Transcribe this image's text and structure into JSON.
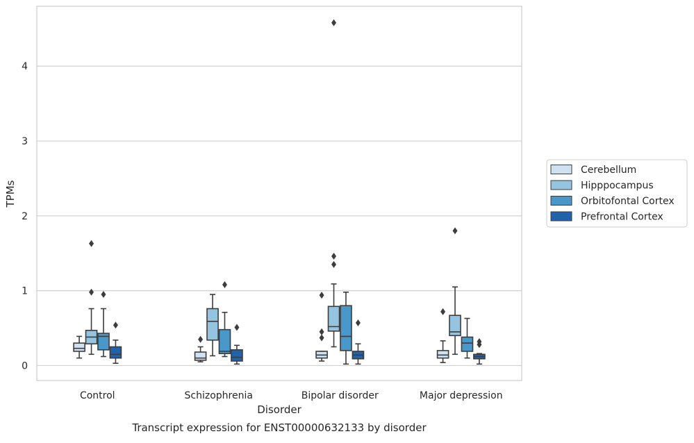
{
  "chart_data": {
    "type": "box",
    "title": "Transcript expression for ENST00000632133 by disorder",
    "xlabel": "Disorder",
    "ylabel": "TPMs",
    "ylim": [
      -0.2,
      4.8
    ],
    "yticks": [
      "0",
      "1",
      "2",
      "3",
      "4"
    ],
    "grid": true,
    "legend_placement": "right",
    "categories": [
      "Control",
      "Schizophrenia",
      "Bipolar disorder",
      "Major depression"
    ],
    "series": [
      {
        "name": "Cerebellum",
        "color": "#d0e1f2",
        "boxes": [
          {
            "whislo": 0.1,
            "q1": 0.19,
            "med": 0.23,
            "q3": 0.3,
            "whishi": 0.39,
            "fliers": []
          },
          {
            "whislo": 0.05,
            "q1": 0.07,
            "med": 0.1,
            "q3": 0.18,
            "whishi": 0.25,
            "fliers": [
              0.35
            ]
          },
          {
            "whislo": 0.06,
            "q1": 0.1,
            "med": 0.14,
            "q3": 0.19,
            "whishi": 0.19,
            "fliers": [
              0.37,
              0.45,
              0.94
            ]
          },
          {
            "whislo": 0.04,
            "q1": 0.1,
            "med": 0.14,
            "q3": 0.2,
            "whishi": 0.33,
            "fliers": [
              0.72
            ]
          }
        ]
      },
      {
        "name": "Hipppocampus",
        "color": "#94c4df",
        "boxes": [
          {
            "whislo": 0.15,
            "q1": 0.29,
            "med": 0.38,
            "q3": 0.47,
            "whishi": 0.76,
            "fliers": [
              0.98,
              1.63
            ]
          },
          {
            "whislo": 0.13,
            "q1": 0.34,
            "med": 0.59,
            "q3": 0.76,
            "whishi": 0.95,
            "fliers": []
          },
          {
            "whislo": 0.25,
            "q1": 0.46,
            "med": 0.52,
            "q3": 0.79,
            "whishi": 1.09,
            "fliers": [
              1.35,
              1.46,
              4.58
            ]
          },
          {
            "whislo": 0.15,
            "q1": 0.4,
            "med": 0.45,
            "q3": 0.67,
            "whishi": 1.05,
            "fliers": [
              1.8
            ]
          }
        ]
      },
      {
        "name": "Orbitofontal Cortex",
        "color": "#4a98c9",
        "boxes": [
          {
            "whislo": 0.12,
            "q1": 0.21,
            "med": 0.39,
            "q3": 0.43,
            "whishi": 0.76,
            "fliers": [
              0.95
            ]
          },
          {
            "whislo": 0.12,
            "q1": 0.16,
            "med": 0.19,
            "q3": 0.48,
            "whishi": 0.71,
            "fliers": [
              1.08
            ]
          },
          {
            "whislo": 0.02,
            "q1": 0.2,
            "med": 0.39,
            "q3": 0.8,
            "whishi": 0.98,
            "fliers": []
          },
          {
            "whislo": 0.1,
            "q1": 0.19,
            "med": 0.3,
            "q3": 0.38,
            "whishi": 0.63,
            "fliers": []
          }
        ]
      },
      {
        "name": "Prefrontal Cortex",
        "color": "#2163aa",
        "boxes": [
          {
            "whislo": 0.03,
            "q1": 0.1,
            "med": 0.15,
            "q3": 0.25,
            "whishi": 0.34,
            "fliers": [
              0.54
            ]
          },
          {
            "whislo": 0.02,
            "q1": 0.06,
            "med": 0.11,
            "q3": 0.21,
            "whishi": 0.27,
            "fliers": [
              0.51
            ]
          },
          {
            "whislo": 0.02,
            "q1": 0.09,
            "med": 0.14,
            "q3": 0.19,
            "whishi": 0.29,
            "fliers": [
              0.57
            ]
          },
          {
            "whislo": 0.02,
            "q1": 0.09,
            "med": 0.12,
            "q3": 0.15,
            "whishi": 0.16,
            "fliers": [
              0.28,
              0.32
            ]
          }
        ]
      }
    ]
  }
}
